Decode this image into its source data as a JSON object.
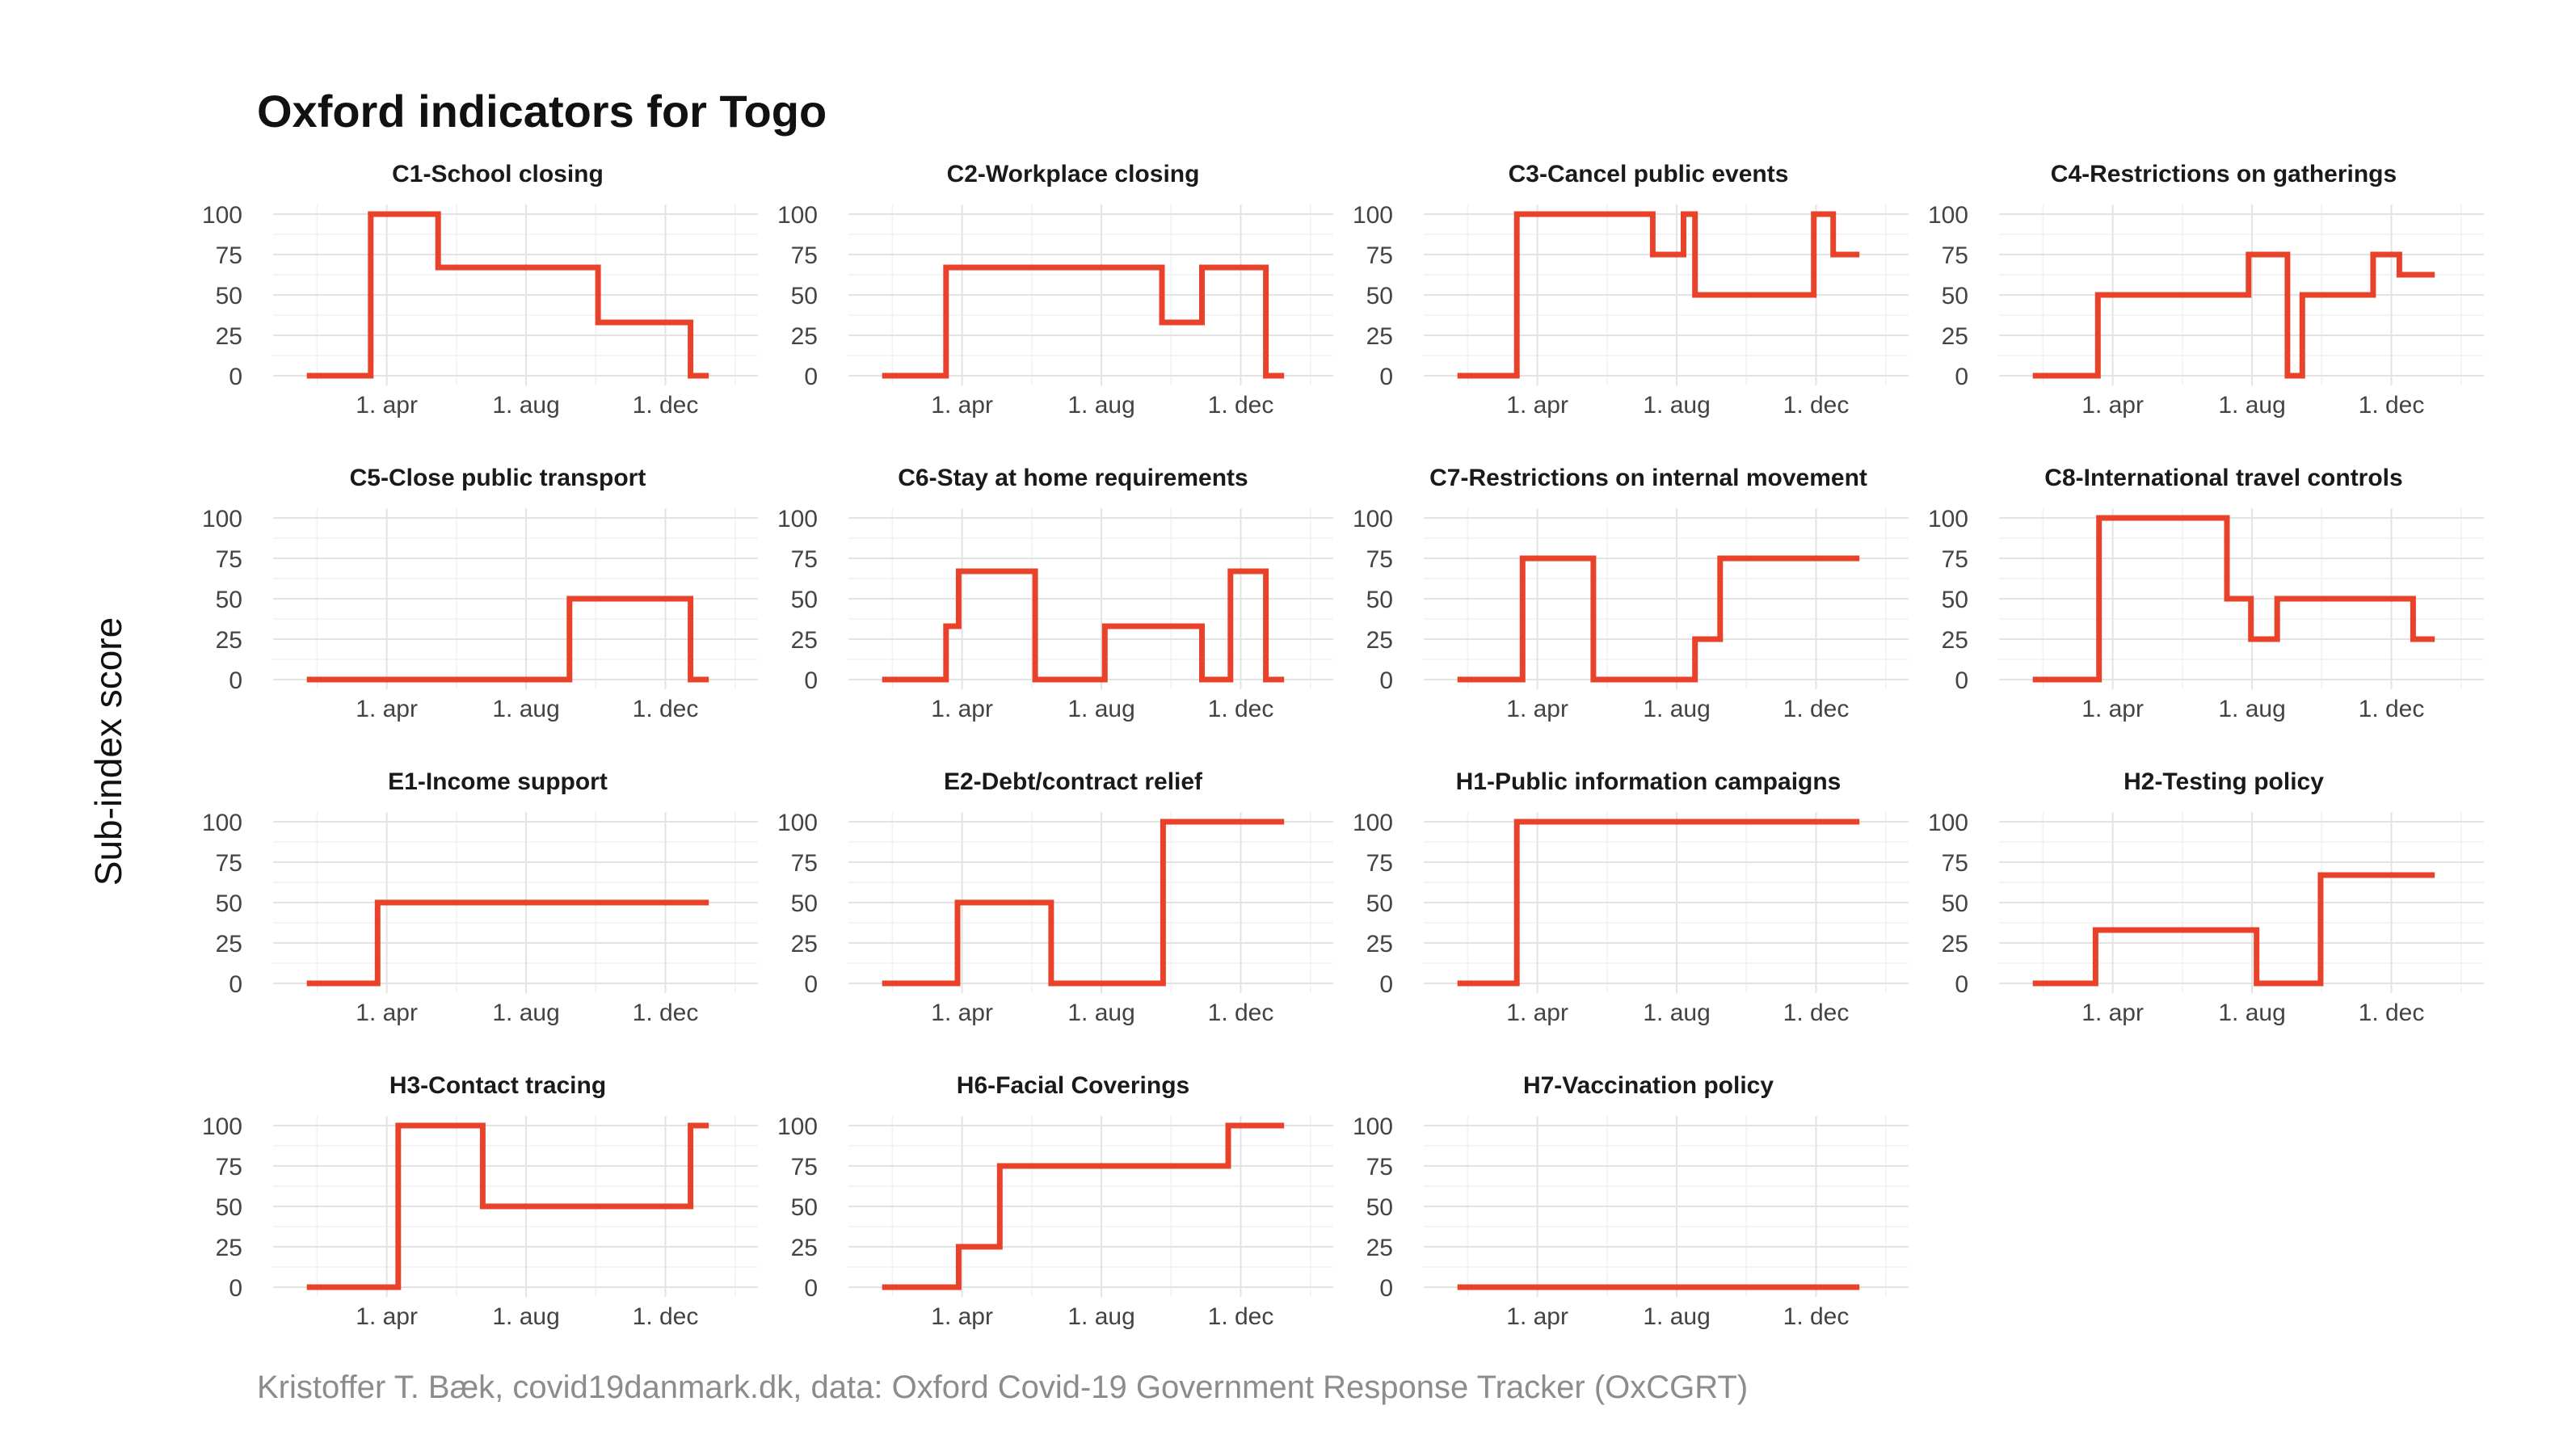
{
  "title": "Oxford indicators for Togo",
  "ylabel": "Sub-index score",
  "caption": "Kristoffer T. Bæk, covid19danmark.dk, data: Oxford Covid-19 Government Response Tracker (OxCGRT)",
  "colors": {
    "line": "#e8432a",
    "grid": "#e3e3e3",
    "text": "#111111",
    "caption": "#8c8c8c"
  },
  "chart_data": {
    "type": "line",
    "layout": "facet-grid 4 columns",
    "shared_axes": {
      "x_tick_labels": [
        "1. apr",
        "1. aug",
        "1. dec"
      ],
      "x_ticks": [
        "2020-04-01",
        "2020-08-01",
        "2020-12-01"
      ],
      "xlim": [
        "2020-01-01",
        "2021-02-20"
      ],
      "y_ticks": [
        0,
        25,
        50,
        75,
        100
      ],
      "ylim": [
        0,
        100
      ],
      "grid": true,
      "legend": "none"
    },
    "panels": [
      {
        "title": "C1-School closing",
        "points": [
          {
            "date": "2020-01-22",
            "value": 0
          },
          {
            "date": "2020-03-18",
            "value": 100
          },
          {
            "date": "2020-05-16",
            "value": 67
          },
          {
            "date": "2020-10-03",
            "value": 33
          },
          {
            "date": "2020-12-23",
            "value": 0
          },
          {
            "date": "2021-01-08",
            "value": 0
          }
        ]
      },
      {
        "title": "C2-Workplace closing",
        "points": [
          {
            "date": "2020-01-22",
            "value": 0
          },
          {
            "date": "2020-03-18",
            "value": 67
          },
          {
            "date": "2020-09-23",
            "value": 33
          },
          {
            "date": "2020-10-28",
            "value": 67
          },
          {
            "date": "2020-12-23",
            "value": 0
          },
          {
            "date": "2021-01-08",
            "value": 0
          }
        ]
      },
      {
        "title": "C3-Cancel public events",
        "points": [
          {
            "date": "2020-01-22",
            "value": 0
          },
          {
            "date": "2020-03-14",
            "value": 100
          },
          {
            "date": "2020-07-11",
            "value": 75
          },
          {
            "date": "2020-08-07",
            "value": 100
          },
          {
            "date": "2020-08-17",
            "value": 50
          },
          {
            "date": "2020-11-29",
            "value": 100
          },
          {
            "date": "2020-12-16",
            "value": 75
          },
          {
            "date": "2021-01-08",
            "value": 75
          }
        ]
      },
      {
        "title": "C4-Restrictions on gatherings",
        "points": [
          {
            "date": "2020-01-22",
            "value": 0
          },
          {
            "date": "2020-03-19",
            "value": 50
          },
          {
            "date": "2020-07-29",
            "value": 75
          },
          {
            "date": "2020-09-01",
            "value": 0
          },
          {
            "date": "2020-09-14",
            "value": 50
          },
          {
            "date": "2020-11-15",
            "value": 75
          },
          {
            "date": "2020-12-08",
            "value": 62.5
          },
          {
            "date": "2021-01-08",
            "value": 62.5
          }
        ]
      },
      {
        "title": "C5-Close public transport",
        "points": [
          {
            "date": "2020-01-22",
            "value": 0
          },
          {
            "date": "2020-09-08",
            "value": 50
          },
          {
            "date": "2020-12-23",
            "value": 0
          },
          {
            "date": "2021-01-08",
            "value": 0
          }
        ]
      },
      {
        "title": "C6-Stay at home requirements",
        "points": [
          {
            "date": "2020-01-22",
            "value": 0
          },
          {
            "date": "2020-03-18",
            "value": 33
          },
          {
            "date": "2020-03-29",
            "value": 67
          },
          {
            "date": "2020-06-04",
            "value": 0
          },
          {
            "date": "2020-08-04",
            "value": 33
          },
          {
            "date": "2020-10-28",
            "value": 0
          },
          {
            "date": "2020-11-22",
            "value": 67
          },
          {
            "date": "2020-12-23",
            "value": 0
          },
          {
            "date": "2021-01-08",
            "value": 0
          }
        ]
      },
      {
        "title": "C7-Restrictions on internal movement",
        "points": [
          {
            "date": "2020-01-22",
            "value": 0
          },
          {
            "date": "2020-03-19",
            "value": 75
          },
          {
            "date": "2020-05-20",
            "value": 0
          },
          {
            "date": "2020-08-17",
            "value": 25
          },
          {
            "date": "2020-09-08",
            "value": 75
          },
          {
            "date": "2021-01-08",
            "value": 75
          }
        ]
      },
      {
        "title": "C8-International travel controls",
        "points": [
          {
            "date": "2020-01-22",
            "value": 0
          },
          {
            "date": "2020-03-20",
            "value": 100
          },
          {
            "date": "2020-07-10",
            "value": 50
          },
          {
            "date": "2020-07-31",
            "value": 25
          },
          {
            "date": "2020-08-23",
            "value": 50
          },
          {
            "date": "2020-12-20",
            "value": 25
          },
          {
            "date": "2021-01-08",
            "value": 25
          }
        ]
      },
      {
        "title": "E1-Income support",
        "points": [
          {
            "date": "2020-01-22",
            "value": 0
          },
          {
            "date": "2020-03-24",
            "value": 50
          },
          {
            "date": "2021-01-08",
            "value": 50
          }
        ]
      },
      {
        "title": "E2-Debt/contract relief",
        "points": [
          {
            "date": "2020-01-22",
            "value": 0
          },
          {
            "date": "2020-03-28",
            "value": 50
          },
          {
            "date": "2020-06-18",
            "value": 0
          },
          {
            "date": "2020-09-24",
            "value": 100
          },
          {
            "date": "2021-01-08",
            "value": 100
          }
        ]
      },
      {
        "title": "H1-Public information campaigns",
        "points": [
          {
            "date": "2020-01-22",
            "value": 0
          },
          {
            "date": "2020-03-14",
            "value": 100
          },
          {
            "date": "2021-01-08",
            "value": 100
          }
        ]
      },
      {
        "title": "H2-Testing policy",
        "points": [
          {
            "date": "2020-01-22",
            "value": 0
          },
          {
            "date": "2020-03-17",
            "value": 33
          },
          {
            "date": "2020-08-05",
            "value": 0
          },
          {
            "date": "2020-09-30",
            "value": 67
          },
          {
            "date": "2021-01-08",
            "value": 67
          }
        ]
      },
      {
        "title": "H3-Contact tracing",
        "points": [
          {
            "date": "2020-01-22",
            "value": 0
          },
          {
            "date": "2020-04-11",
            "value": 100
          },
          {
            "date": "2020-06-24",
            "value": 50
          },
          {
            "date": "2020-12-23",
            "value": 100
          },
          {
            "date": "2021-01-08",
            "value": 100
          }
        ]
      },
      {
        "title": "H6-Facial Coverings",
        "points": [
          {
            "date": "2020-01-22",
            "value": 0
          },
          {
            "date": "2020-03-29",
            "value": 25
          },
          {
            "date": "2020-05-04",
            "value": 75
          },
          {
            "date": "2020-11-20",
            "value": 100
          },
          {
            "date": "2021-01-08",
            "value": 100
          }
        ]
      },
      {
        "title": "H7-Vaccination policy",
        "points": [
          {
            "date": "2020-01-22",
            "value": 0
          },
          {
            "date": "2021-01-08",
            "value": 0
          }
        ]
      }
    ]
  }
}
